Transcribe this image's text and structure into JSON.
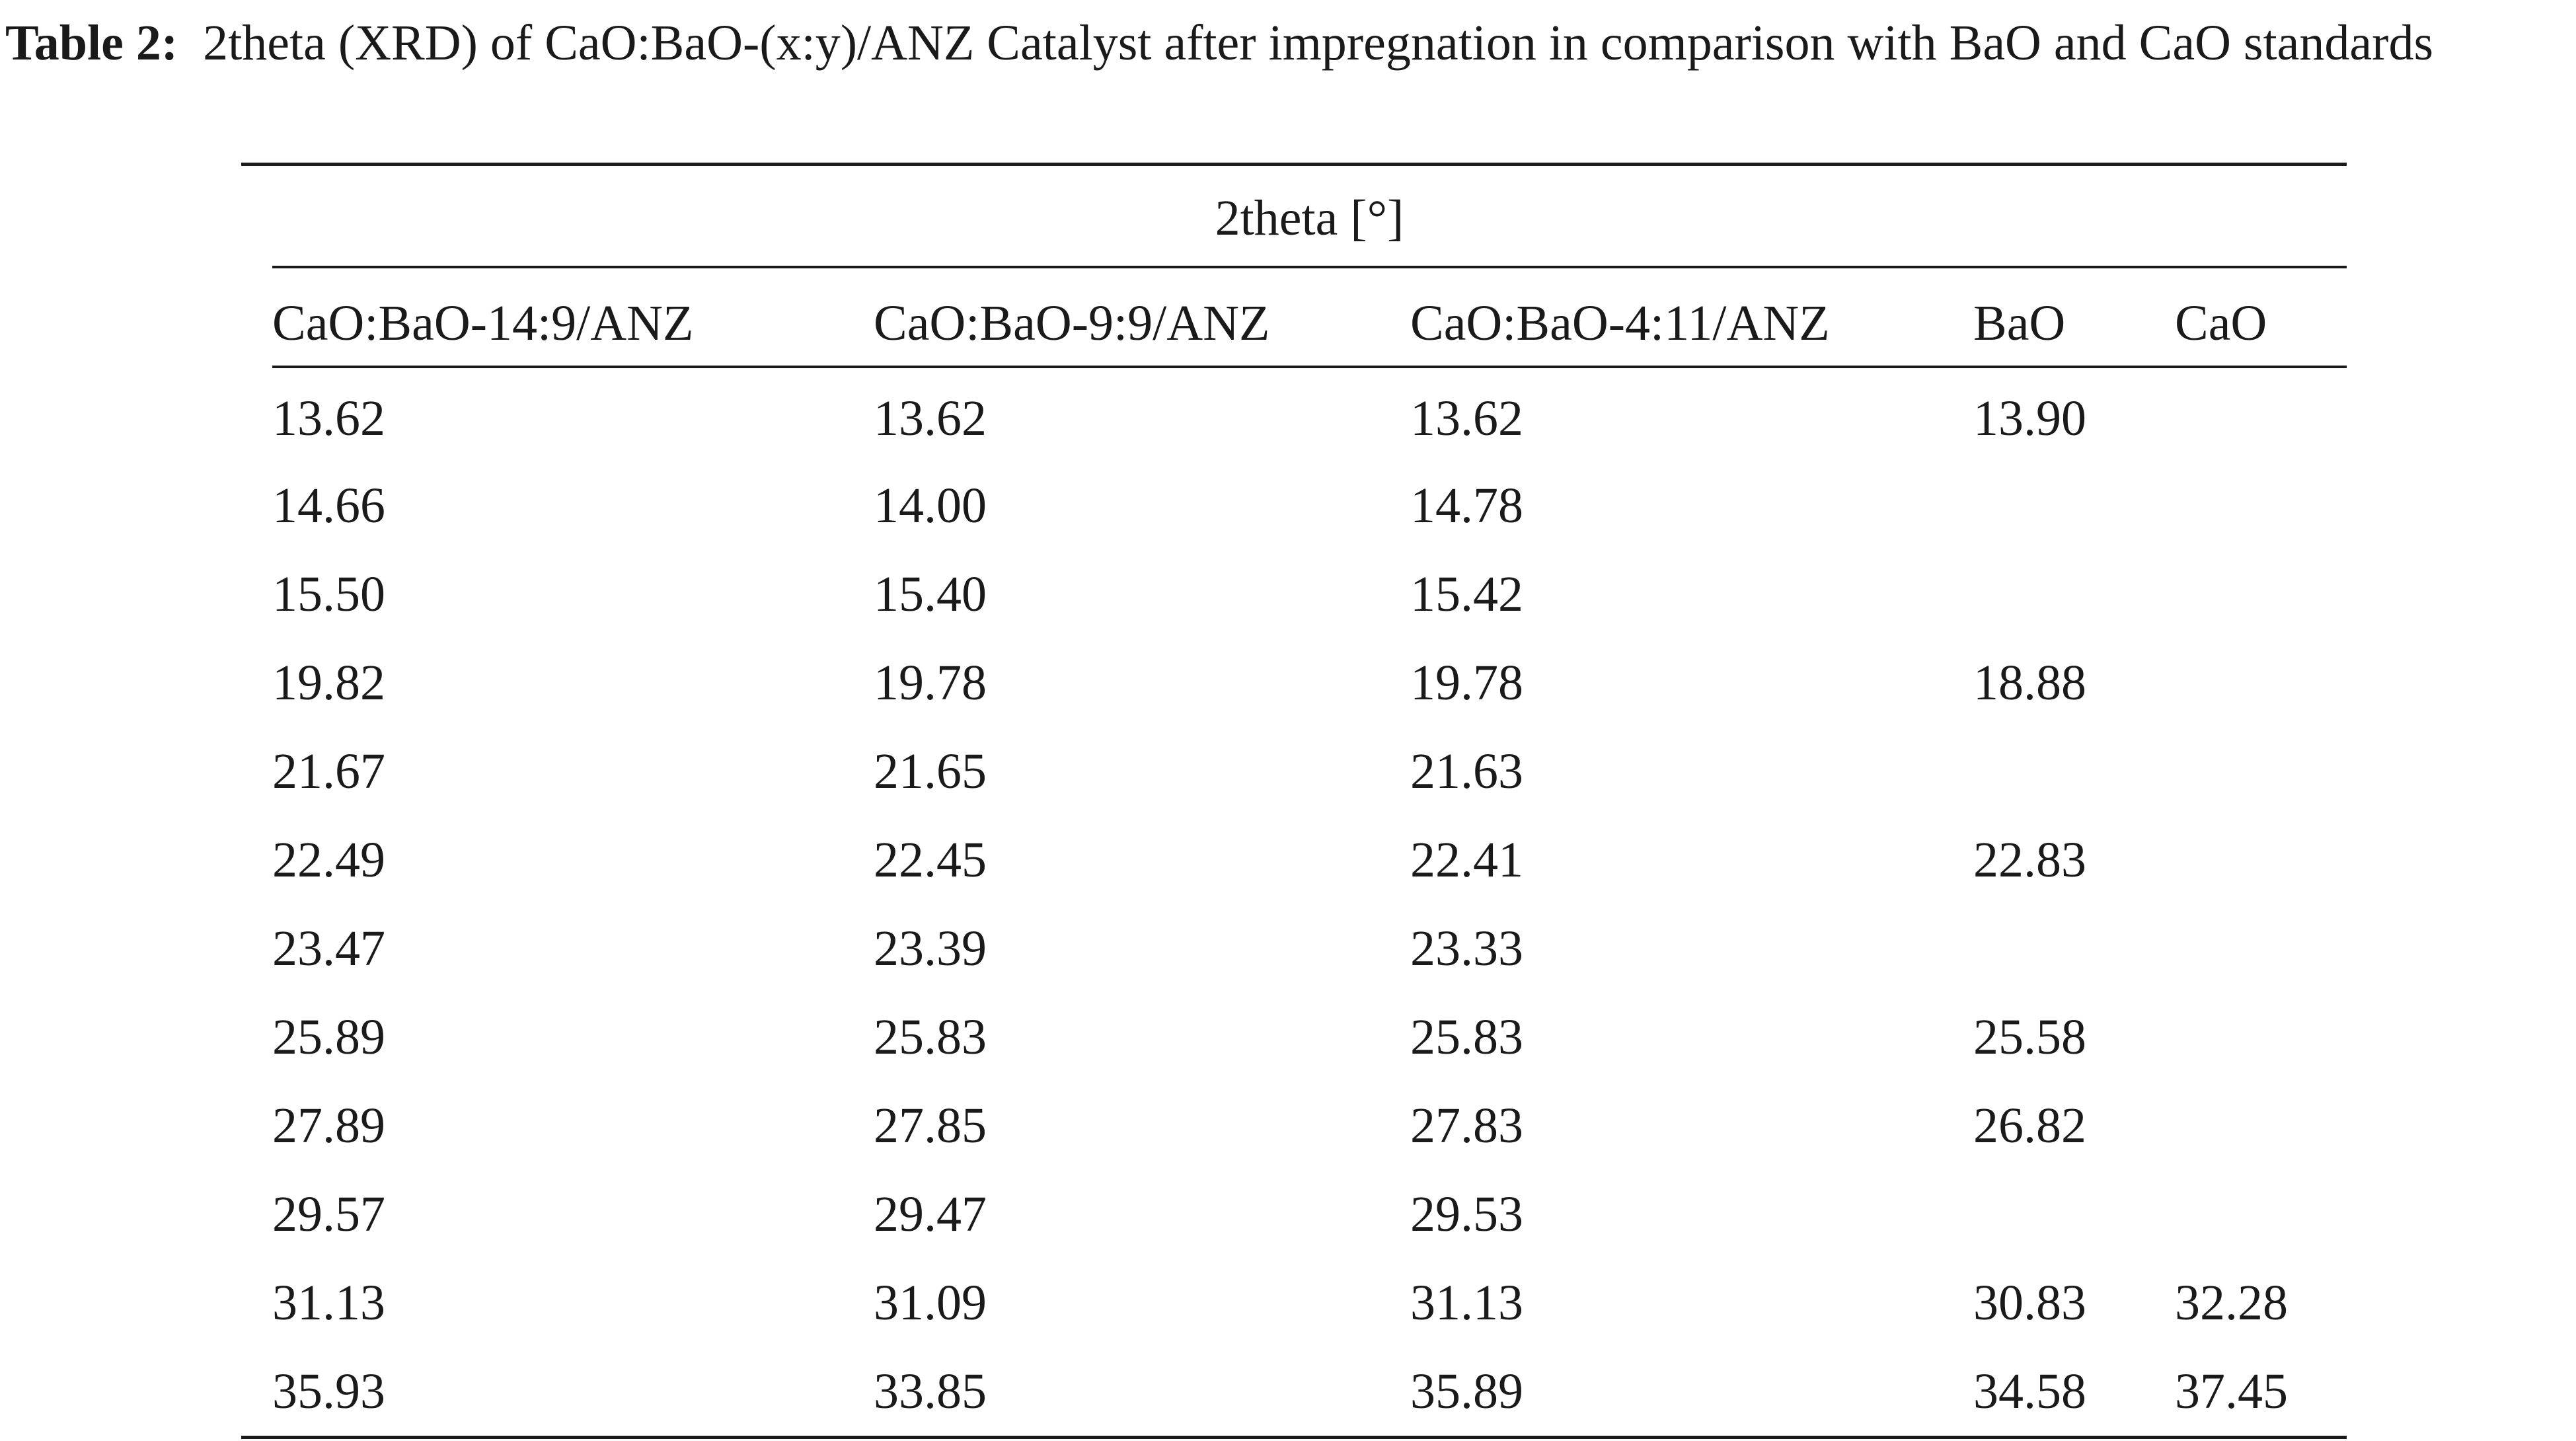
{
  "caption": {
    "label": "Table 2:",
    "text": "2theta (XRD) of CaO:BaO-(x:y)/ANZ Catalyst after impregnation in comparison with BaO and CaO standards"
  },
  "table": {
    "group_header": "2theta [°]",
    "columns": [
      "CaO:BaO-14:9/ANZ",
      "CaO:BaO-9:9/ANZ",
      "CaO:BaO-4:11/ANZ",
      "BaO",
      "CaO"
    ],
    "rows": [
      [
        "13.62",
        "13.62",
        "13.62",
        "13.90",
        ""
      ],
      [
        "14.66",
        "14.00",
        "14.78",
        "",
        ""
      ],
      [
        "15.50",
        "15.40",
        "15.42",
        "",
        ""
      ],
      [
        "19.82",
        "19.78",
        "19.78",
        "18.88",
        ""
      ],
      [
        "21.67",
        "21.65",
        "21.63",
        "",
        ""
      ],
      [
        "22.49",
        "22.45",
        "22.41",
        "22.83",
        ""
      ],
      [
        "23.47",
        "23.39",
        "23.33",
        "",
        ""
      ],
      [
        "25.89",
        "25.83",
        "25.83",
        "25.58",
        ""
      ],
      [
        "27.89",
        "27.85",
        "27.83",
        "26.82",
        ""
      ],
      [
        "29.57",
        "29.47",
        "29.53",
        "",
        ""
      ],
      [
        "31.13",
        "31.09",
        "31.13",
        "30.83",
        "32.28"
      ],
      [
        "35.93",
        "33.85",
        "35.89",
        "34.58",
        "37.45"
      ]
    ]
  }
}
